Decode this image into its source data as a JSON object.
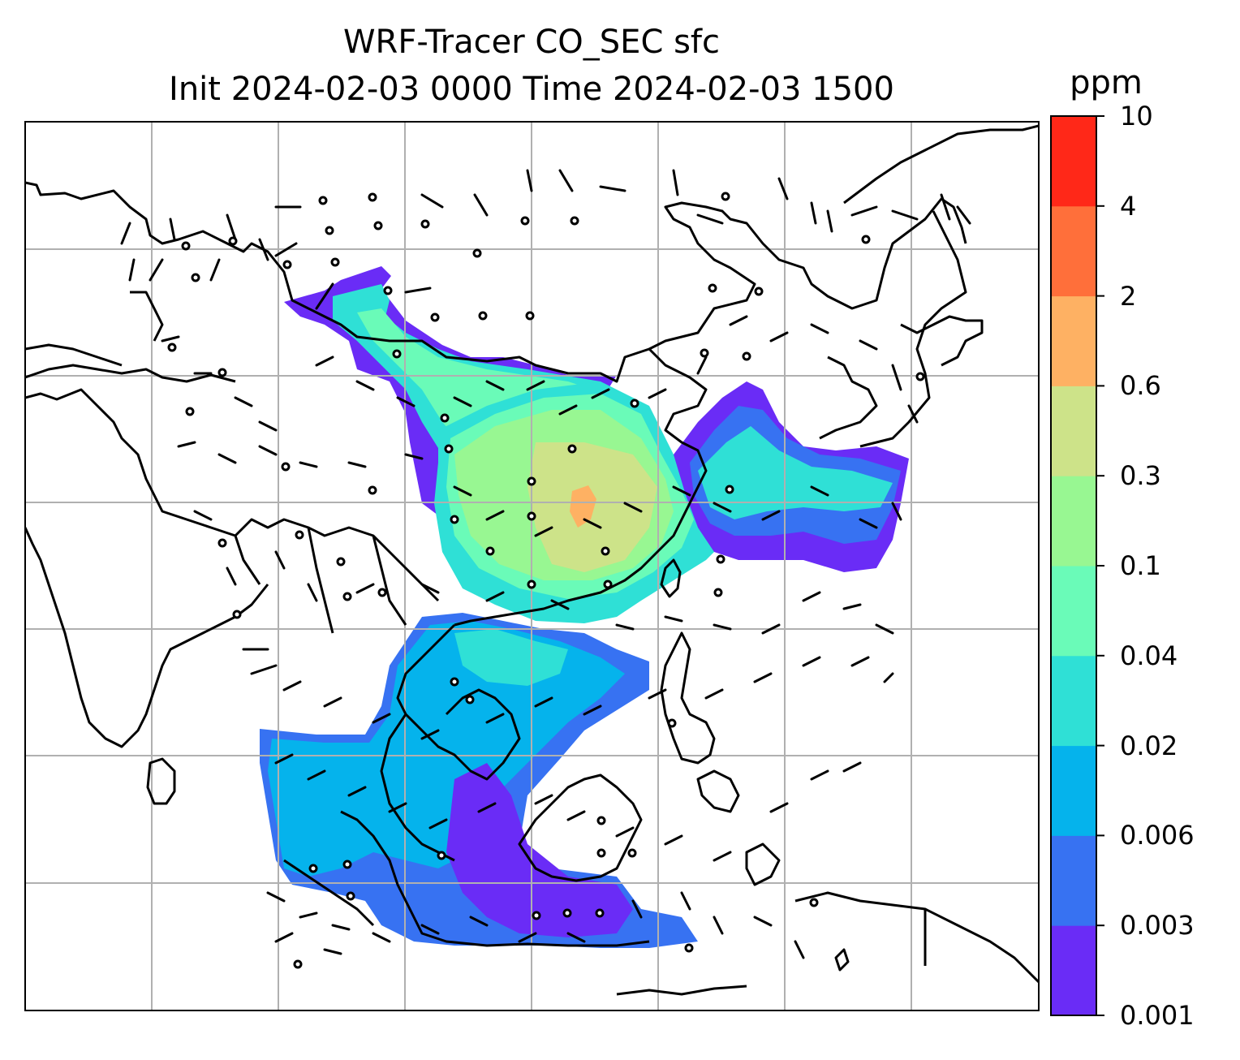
{
  "title_line1": "WRF-Tracer CO_SEC sfc",
  "title_line2": "Init 2024-02-03 0000 Time 2024-02-03 1500",
  "colorbar": {
    "unit": "ppm",
    "ticks": [
      "0.001",
      "0.003",
      "0.006",
      "0.02",
      "0.04",
      "0.1",
      "0.3",
      "0.6",
      "2",
      "4",
      "10"
    ],
    "colors": [
      "#6a2cf6",
      "#3772f2",
      "#05b3ec",
      "#2fe0d6",
      "#6afbb8",
      "#98f792",
      "#cde389",
      "#feb163",
      "#ff6f3a",
      "#ff2818"
    ]
  },
  "colors": {
    "coastline": "#000000",
    "gridline": "#b0b0b0",
    "frame": "#000000",
    "wind_barb": "#000000"
  }
}
